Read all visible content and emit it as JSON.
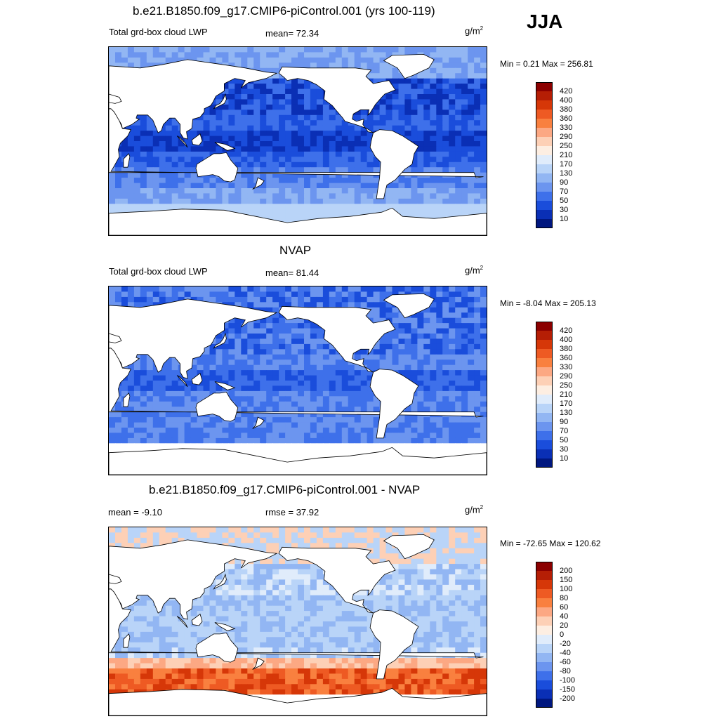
{
  "season": "JJA",
  "panels": [
    {
      "title": "b.e21.B1850.f09_g17.CMIP6-piControl.001 (yrs 100-119)",
      "left_label": "Total grd-box cloud LWP",
      "center_label": "mean=  72.34",
      "units_base": "g/m",
      "units_exp": "2",
      "minmax": "Min =   0.21 Max = 256.81",
      "colorbar_labels": [
        "420",
        "400",
        "380",
        "360",
        "330",
        "290",
        "250",
        "210",
        "170",
        "130",
        "90",
        "70",
        "50",
        "30",
        "10"
      ]
    },
    {
      "title": "NVAP",
      "left_label": "Total grd-box cloud LWP",
      "center_label": "mean=  81.44",
      "units_base": "g/m",
      "units_exp": "2",
      "minmax": "Min =  -8.04 Max = 205.13",
      "colorbar_labels": [
        "420",
        "400",
        "380",
        "360",
        "330",
        "290",
        "250",
        "210",
        "170",
        "130",
        "90",
        "70",
        "50",
        "30",
        "10"
      ]
    },
    {
      "title": "b.e21.B1850.f09_g17.CMIP6-piControl.001 - NVAP",
      "left_label": "mean =  -9.10",
      "center_label": "rmse =  37.92",
      "units_base": "g/m",
      "units_exp": "2",
      "minmax": "Min = -72.65 Max = 120.62",
      "colorbar_labels": [
        "200",
        "150",
        "100",
        "80",
        "60",
        "40",
        "20",
        "0",
        "-20",
        "-40",
        "-60",
        "-80",
        "-100",
        "-150",
        "-200"
      ]
    }
  ],
  "colors": {
    "abs_scale": [
      "#8b0000",
      "#b51e05",
      "#d63708",
      "#ee5a23",
      "#f9803f",
      "#fca883",
      "#fdd0b6",
      "#fdeee2",
      "#e0ecfb",
      "#b9d4f8",
      "#92b6f3",
      "#6c95ef",
      "#3e70ea",
      "#1a4ddb",
      "#0a2fb5",
      "#00177f"
    ],
    "diff_scale": [
      "#8b0000",
      "#b51e05",
      "#d63708",
      "#ee5a23",
      "#f9803f",
      "#fca883",
      "#fdd0b6",
      "#fdeee2",
      "#e0ecfb",
      "#b9d4f8",
      "#92b6f3",
      "#6c95ef",
      "#3e70ea",
      "#1a4ddb",
      "#0a2fb5",
      "#00177f"
    ],
    "land": "#ffffff",
    "coast": "#000000"
  }
}
